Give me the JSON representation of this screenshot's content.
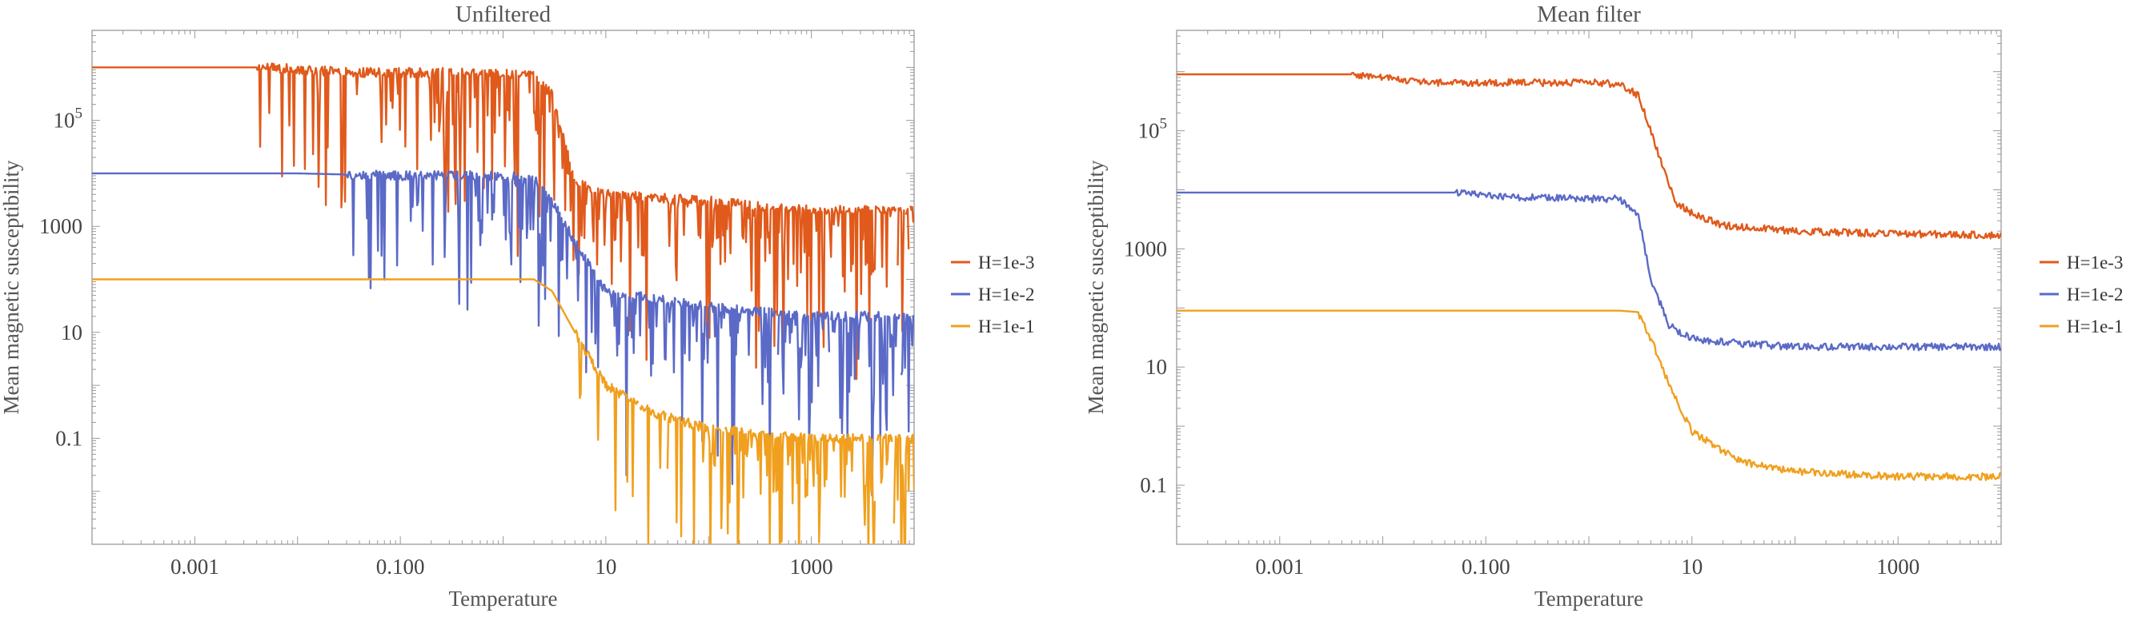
{
  "chart_data": [
    {
      "type": "line",
      "title": "Unfiltered",
      "xlabel": "Temperature",
      "ylabel": "Mean magnetic susceptibility",
      "xscale": "log",
      "yscale": "log",
      "xlim": [
        0.0001,
        10000
      ],
      "ylim": [
        0.001,
        5000000
      ],
      "x_ticks": [
        {
          "v": 0.001,
          "label": "0.001"
        },
        {
          "v": 0.1,
          "label": "0.100"
        },
        {
          "v": 10,
          "label": "10"
        },
        {
          "v": 1000,
          "label": "1000"
        }
      ],
      "y_ticks": [
        {
          "v": 0.1,
          "label": "0.1"
        },
        {
          "v": 10,
          "label": "10"
        },
        {
          "v": 1000,
          "label": "1000"
        },
        {
          "v": 100000,
          "label": "10^5"
        }
      ],
      "legend_position": "right",
      "style": "noisy",
      "series": [
        {
          "name": "H=1e-3",
          "color": "#e05a1c",
          "x": [
            0.0001,
            0.005,
            0.03,
            0.2,
            1,
            2,
            3,
            5,
            10,
            100,
            1000,
            10000
          ],
          "y": [
            1000000,
            1000000,
            800000,
            800000,
            800000,
            700000,
            300000,
            7000,
            4000,
            3000,
            2000,
            2000
          ],
          "noise_start": 0.004
        },
        {
          "name": "H=1e-2",
          "color": "#5b6ac7",
          "x": [
            0.0001,
            0.01,
            0.1,
            1,
            2,
            3,
            5,
            10,
            100,
            1000,
            10000
          ],
          "y": [
            10000,
            10000,
            9000,
            9000,
            8000,
            3000,
            500,
            60,
            30,
            20,
            20
          ],
          "noise_start": 0.03
        },
        {
          "name": "H=1e-1",
          "color": "#f0a01e",
          "x": [
            0.0001,
            1,
            2,
            3,
            5,
            10,
            30,
            100,
            1000,
            10000
          ],
          "y": [
            100,
            100,
            100,
            60,
            10,
            1,
            0.3,
            0.15,
            0.1,
            0.1
          ],
          "noise_start": 5
        }
      ]
    },
    {
      "type": "line",
      "title": "Mean filter",
      "xlabel": "Temperature",
      "ylabel": "Mean magnetic susceptibility",
      "xscale": "log",
      "yscale": "log",
      "xlim": [
        0.0001,
        10000
      ],
      "ylim": [
        0.01,
        5000000
      ],
      "x_ticks": [
        {
          "v": 0.001,
          "label": "0.001"
        },
        {
          "v": 0.1,
          "label": "0.100"
        },
        {
          "v": 10,
          "label": "10"
        },
        {
          "v": 1000,
          "label": "1000"
        }
      ],
      "y_ticks": [
        {
          "v": 0.1,
          "label": "0.1"
        },
        {
          "v": 10,
          "label": "10"
        },
        {
          "v": 1000,
          "label": "1000"
        },
        {
          "v": 100000,
          "label": "10^5"
        }
      ],
      "legend_position": "right",
      "style": "smooth",
      "series": [
        {
          "name": "H=1e-3",
          "color": "#e05a1c",
          "x": [
            0.0001,
            0.005,
            0.03,
            0.2,
            1,
            2,
            3,
            4,
            5,
            7,
            10,
            20,
            100,
            1000,
            10000
          ],
          "y": [
            900000,
            900000,
            650000,
            650000,
            650000,
            620000,
            400000,
            100000,
            30000,
            6000,
            4000,
            2500,
            2000,
            1800,
            1700
          ],
          "noise_start": 0.005
        },
        {
          "name": "H=1e-2",
          "color": "#5b6ac7",
          "x": [
            0.0001,
            0.05,
            0.2,
            1,
            2,
            3,
            4,
            6,
            10,
            30,
            100,
            1000,
            10000
          ],
          "y": [
            9000,
            9000,
            7500,
            7000,
            7000,
            4000,
            300,
            50,
            30,
            25,
            22,
            22,
            22
          ],
          "noise_start": 0.05
        },
        {
          "name": "H=1e-1",
          "color": "#f0a01e",
          "x": [
            0.0001,
            1,
            2,
            3,
            4,
            6,
            10,
            30,
            100,
            1000,
            10000
          ],
          "y": [
            90,
            90,
            90,
            85,
            30,
            5,
            0.8,
            0.25,
            0.17,
            0.14,
            0.14
          ],
          "noise_start": 3
        }
      ]
    }
  ]
}
